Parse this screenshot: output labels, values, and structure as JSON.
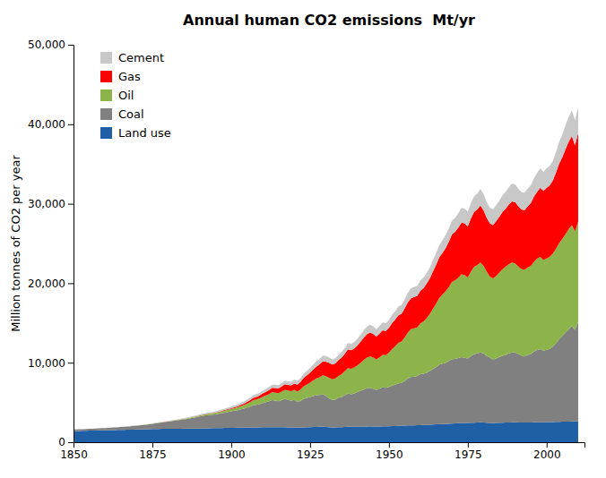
{
  "chart_data": {
    "type": "area",
    "stacked": true,
    "title": "Annual human CO2 emissions  Mt/yr",
    "ylabel": "Million tonnes of CO2 per year",
    "xlim": [
      1850,
      2012
    ],
    "ylim": [
      0,
      50000
    ],
    "xticks": [
      1850,
      1875,
      1900,
      1925,
      1950,
      1975,
      2000
    ],
    "yticks": [
      0,
      {
        "value": 10000,
        "label": "10,000"
      },
      {
        "value": 20000,
        "label": "20,000"
      },
      {
        "value": 30000,
        "label": "30,000"
      },
      {
        "value": 40000,
        "label": "40,000"
      },
      {
        "value": 50000,
        "label": "50,000"
      }
    ],
    "grid": false,
    "legend": "upper left",
    "x": [
      1850,
      1851,
      1852,
      1853,
      1854,
      1855,
      1856,
      1857,
      1858,
      1859,
      1860,
      1861,
      1862,
      1863,
      1864,
      1865,
      1866,
      1867,
      1868,
      1869,
      1870,
      1871,
      1872,
      1873,
      1874,
      1875,
      1876,
      1877,
      1878,
      1879,
      1880,
      1881,
      1882,
      1883,
      1884,
      1885,
      1886,
      1887,
      1888,
      1889,
      1890,
      1891,
      1892,
      1893,
      1894,
      1895,
      1896,
      1897,
      1898,
      1899,
      1900,
      1901,
      1902,
      1903,
      1904,
      1905,
      1906,
      1907,
      1908,
      1909,
      1910,
      1911,
      1912,
      1913,
      1914,
      1915,
      1916,
      1917,
      1918,
      1919,
      1920,
      1921,
      1922,
      1923,
      1924,
      1925,
      1926,
      1927,
      1928,
      1929,
      1930,
      1931,
      1932,
      1933,
      1934,
      1935,
      1936,
      1937,
      1938,
      1939,
      1940,
      1941,
      1942,
      1943,
      1944,
      1945,
      1946,
      1947,
      1948,
      1949,
      1950,
      1951,
      1952,
      1953,
      1954,
      1955,
      1956,
      1957,
      1958,
      1959,
      1960,
      1961,
      1962,
      1963,
      1964,
      1965,
      1966,
      1967,
      1968,
      1969,
      1970,
      1971,
      1972,
      1973,
      1974,
      1975,
      1976,
      1977,
      1978,
      1979,
      1980,
      1981,
      1982,
      1983,
      1984,
      1985,
      1986,
      1987,
      1988,
      1989,
      1990,
      1991,
      1992,
      1993,
      1994,
      1995,
      1996,
      1997,
      1998,
      1999,
      2000,
      2001,
      2002,
      2003,
      2004,
      2005,
      2006,
      2007,
      2008,
      2009,
      2010
    ],
    "series": [
      {
        "name": "Land use",
        "color": "#1f5fa6",
        "values": [
          1400,
          1410,
          1420,
          1430,
          1440,
          1450,
          1460,
          1470,
          1480,
          1490,
          1500,
          1510,
          1520,
          1530,
          1540,
          1550,
          1560,
          1570,
          1580,
          1590,
          1600,
          1610,
          1620,
          1630,
          1640,
          1650,
          1660,
          1670,
          1680,
          1680,
          1680,
          1690,
          1700,
          1700,
          1700,
          1710,
          1710,
          1720,
          1720,
          1730,
          1730,
          1740,
          1750,
          1750,
          1760,
          1760,
          1770,
          1780,
          1790,
          1800,
          1800,
          1810,
          1820,
          1830,
          1840,
          1850,
          1860,
          1870,
          1860,
          1870,
          1880,
          1880,
          1890,
          1900,
          1890,
          1880,
          1890,
          1900,
          1870,
          1860,
          1870,
          1840,
          1850,
          1870,
          1880,
          1900,
          1910,
          1920,
          1930,
          1940,
          1910,
          1880,
          1850,
          1860,
          1890,
          1900,
          1920,
          1940,
          1930,
          1950,
          1960,
          1970,
          1980,
          1980,
          1990,
          1980,
          1970,
          1980,
          1990,
          1990,
          2000,
          2020,
          2030,
          2050,
          2060,
          2080,
          2100,
          2110,
          2120,
          2130,
          2150,
          2160,
          2180,
          2200,
          2220,
          2250,
          2270,
          2280,
          2300,
          2320,
          2350,
          2370,
          2390,
          2410,
          2420,
          2430,
          2450,
          2460,
          2480,
          2500,
          2480,
          2450,
          2430,
          2420,
          2420,
          2440,
          2460,
          2470,
          2490,
          2500,
          2500,
          2490,
          2490,
          2490,
          2480,
          2490,
          2500,
          2510,
          2510,
          2510,
          2520,
          2530,
          2540,
          2560,
          2570,
          2580,
          2590,
          2600,
          2610,
          2620,
          2630
        ]
      },
      {
        "name": "Coal",
        "color": "#808080",
        "values": [
          200,
          205,
          210,
          215,
          220,
          230,
          240,
          250,
          260,
          270,
          280,
          295,
          310,
          330,
          350,
          370,
          390,
          410,
          430,
          455,
          480,
          510,
          540,
          580,
          620,
          660,
          710,
          760,
          800,
          840,
          900,
          950,
          1000,
          1060,
          1110,
          1170,
          1230,
          1290,
          1360,
          1430,
          1510,
          1570,
          1630,
          1660,
          1690,
          1730,
          1800,
          1870,
          1940,
          2010,
          2090,
          2150,
          2200,
          2300,
          2380,
          2500,
          2630,
          2800,
          2850,
          2920,
          3050,
          3150,
          3260,
          3400,
          3350,
          3280,
          3400,
          3550,
          3450,
          3350,
          3450,
          3200,
          3350,
          3600,
          3700,
          3800,
          3900,
          4000,
          4020,
          4100,
          3900,
          3650,
          3450,
          3500,
          3700,
          3800,
          4000,
          4200,
          4100,
          4200,
          4350,
          4500,
          4650,
          4800,
          4850,
          4750,
          4600,
          4750,
          4900,
          4850,
          4950,
          5100,
          5200,
          5350,
          5400,
          5600,
          5900,
          6100,
          6100,
          6200,
          6400,
          6450,
          6550,
          6750,
          7000,
          7200,
          7500,
          7600,
          7700,
          7900,
          8100,
          8100,
          8200,
          8300,
          8200,
          8100,
          8400,
          8600,
          8700,
          8800,
          8700,
          8400,
          8200,
          8000,
          8100,
          8300,
          8400,
          8500,
          8700,
          8800,
          8800,
          8600,
          8400,
          8300,
          8500,
          8600,
          8900,
          9100,
          9200,
          9000,
          9100,
          9200,
          9500,
          9900,
          10400,
          10800,
          11200,
          11600,
          12000,
          11500,
          12500
        ]
      },
      {
        "name": "Oil",
        "color": "#8db44a",
        "values": [
          0,
          0,
          0,
          0,
          0,
          0,
          0,
          0,
          0,
          0,
          0,
          0,
          0,
          0,
          0,
          0,
          0,
          1,
          2,
          3,
          5,
          6,
          7,
          9,
          11,
          13,
          16,
          19,
          22,
          26,
          30,
          35,
          40,
          46,
          52,
          59,
          67,
          75,
          84,
          95,
          108,
          122,
          138,
          154,
          171,
          189,
          208,
          228,
          250,
          275,
          300,
          330,
          365,
          405,
          450,
          500,
          560,
          630,
          680,
          730,
          790,
          840,
          900,
          970,
          990,
          1010,
          1080,
          1150,
          1180,
          1200,
          1260,
          1330,
          1440,
          1570,
          1680,
          1800,
          1950,
          2100,
          2220,
          2380,
          2500,
          2580,
          2600,
          2650,
          2750,
          2850,
          3000,
          3180,
          3200,
          3250,
          3350,
          3500,
          3700,
          3850,
          3950,
          3950,
          3850,
          3950,
          4100,
          4100,
          4300,
          4600,
          4850,
          5100,
          5200,
          5500,
          5800,
          6000,
          6100,
          6100,
          6400,
          6600,
          6900,
          7200,
          7600,
          8000,
          8400,
          8700,
          9000,
          9300,
          9700,
          9900,
          10100,
          10400,
          10400,
          10200,
          10600,
          11000,
          11100,
          11300,
          11000,
          10600,
          10200,
          10200,
          10400,
          10600,
          10900,
          11100,
          11200,
          11300,
          11200,
          11000,
          10900,
          10900,
          11000,
          11100,
          11300,
          11500,
          11600,
          11400,
          11500,
          11600,
          11700,
          11900,
          12100,
          12200,
          12400,
          12600,
          12700,
          12400,
          12600
        ]
      },
      {
        "name": "Gas",
        "color": "#ff0000",
        "values": [
          0,
          0,
          0,
          0,
          0,
          0,
          0,
          0,
          0,
          0,
          0,
          0,
          0,
          0,
          0,
          0,
          0,
          0,
          0,
          0,
          0,
          0,
          0,
          0,
          0,
          1,
          1,
          2,
          2,
          3,
          4,
          5,
          6,
          8,
          9,
          11,
          13,
          15,
          18,
          21,
          24,
          28,
          32,
          37,
          42,
          48,
          55,
          63,
          72,
          82,
          95,
          110,
          130,
          155,
          180,
          210,
          245,
          285,
          320,
          360,
          410,
          460,
          510,
          560,
          590,
          610,
          650,
          700,
          720,
          750,
          800,
          870,
          960,
          1060,
          1150,
          1250,
          1380,
          1500,
          1620,
          1750,
          1820,
          1880,
          1870,
          1900,
          2000,
          2080,
          2200,
          2350,
          2350,
          2400,
          2500,
          2680,
          2830,
          2950,
          3000,
          2950,
          2870,
          2980,
          3100,
          3050,
          3150,
          3280,
          3350,
          3450,
          3500,
          3650,
          3800,
          3900,
          3950,
          3980,
          4100,
          4200,
          4350,
          4500,
          4700,
          4900,
          5100,
          5250,
          5450,
          5700,
          6000,
          6100,
          6300,
          6500,
          6500,
          6400,
          6700,
          6900,
          7000,
          7200,
          7000,
          6800,
          6700,
          6700,
          6900,
          7000,
          7200,
          7300,
          7500,
          7700,
          7700,
          7600,
          7500,
          7500,
          7700,
          7900,
          8200,
          8400,
          8700,
          8700,
          8900,
          9000,
          9200,
          9600,
          10000,
          10300,
          10700,
          11000,
          11200,
          10800,
          11200
        ]
      },
      {
        "name": "Cement",
        "color": "#c8c8c8",
        "values": [
          20,
          20,
          21,
          21,
          22,
          22,
          23,
          23,
          24,
          24,
          25,
          25,
          26,
          27,
          28,
          29,
          30,
          31,
          32,
          33,
          35,
          37,
          39,
          41,
          44,
          46,
          49,
          52,
          55,
          58,
          62,
          66,
          70,
          75,
          80,
          85,
          90,
          96,
          102,
          109,
          116,
          123,
          131,
          139,
          148,
          157,
          167,
          177,
          188,
          200,
          212,
          224,
          238,
          252,
          268,
          284,
          302,
          322,
          332,
          344,
          358,
          374,
          388,
          404,
          406,
          410,
          428,
          448,
          448,
          454,
          472,
          490,
          516,
          544,
          572,
          600,
          632,
          668,
          692,
          722,
          700,
          672,
          646,
          652,
          680,
          706,
          744,
          790,
          782,
          804,
          836,
          874,
          918,
          958,
          980,
          960,
          926,
          958,
          994,
          982,
          1000,
          1040,
          1062,
          1100,
          1120,
          1160,
          1210,
          1260,
          1260,
          1276,
          1300,
          1308,
          1336,
          1378,
          1428,
          1484,
          1546,
          1582,
          1636,
          1694,
          1744,
          1768,
          1810,
          1860,
          1872,
          1884,
          1930,
          1978,
          2006,
          2040,
          2028,
          1998,
          1978,
          1982,
          2014,
          2050,
          2102,
          2138,
          2184,
          2228,
          2220,
          2200,
          2188,
          2196,
          2228,
          2270,
          2330,
          2384,
          2434,
          2396,
          2420,
          2444,
          2488,
          2590,
          2718,
          2850,
          2998,
          3130,
          3230,
          3180,
          3280
        ]
      }
    ]
  }
}
